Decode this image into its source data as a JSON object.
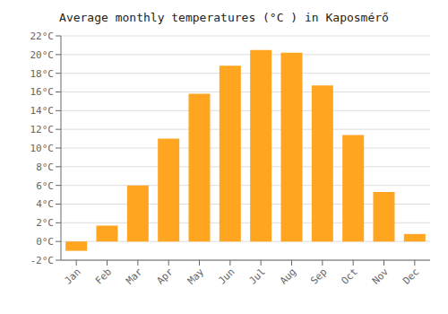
{
  "chart_data": {
    "type": "bar",
    "title": "Average monthly temperatures (°C ) in Kaposmérő",
    "categories": [
      "Jan",
      "Feb",
      "Mar",
      "Apr",
      "May",
      "Jun",
      "Jul",
      "Aug",
      "Sep",
      "Oct",
      "Nov",
      "Dec"
    ],
    "values": [
      -1.0,
      1.7,
      6.0,
      11.0,
      15.8,
      18.8,
      20.5,
      20.2,
      16.7,
      11.4,
      5.3,
      0.8
    ],
    "color": "#FFA520",
    "ylim": [
      -2,
      22
    ],
    "yticks": [
      {
        "value": -2,
        "label": "-2°C"
      },
      {
        "value": 0,
        "label": "0°C"
      },
      {
        "value": 2,
        "label": "2°C"
      },
      {
        "value": 4,
        "label": "4°C"
      },
      {
        "value": 6,
        "label": "6°C"
      },
      {
        "value": 8,
        "label": "8°C"
      },
      {
        "value": 10,
        "label": "10°C"
      },
      {
        "value": 12,
        "label": "12°C"
      },
      {
        "value": 14,
        "label": "14°C"
      },
      {
        "value": 16,
        "label": "16°C"
      },
      {
        "value": 18,
        "label": "18°C"
      },
      {
        "value": 20,
        "label": "20°C"
      },
      {
        "value": 22,
        "label": "22°C"
      }
    ],
    "grid": true
  }
}
